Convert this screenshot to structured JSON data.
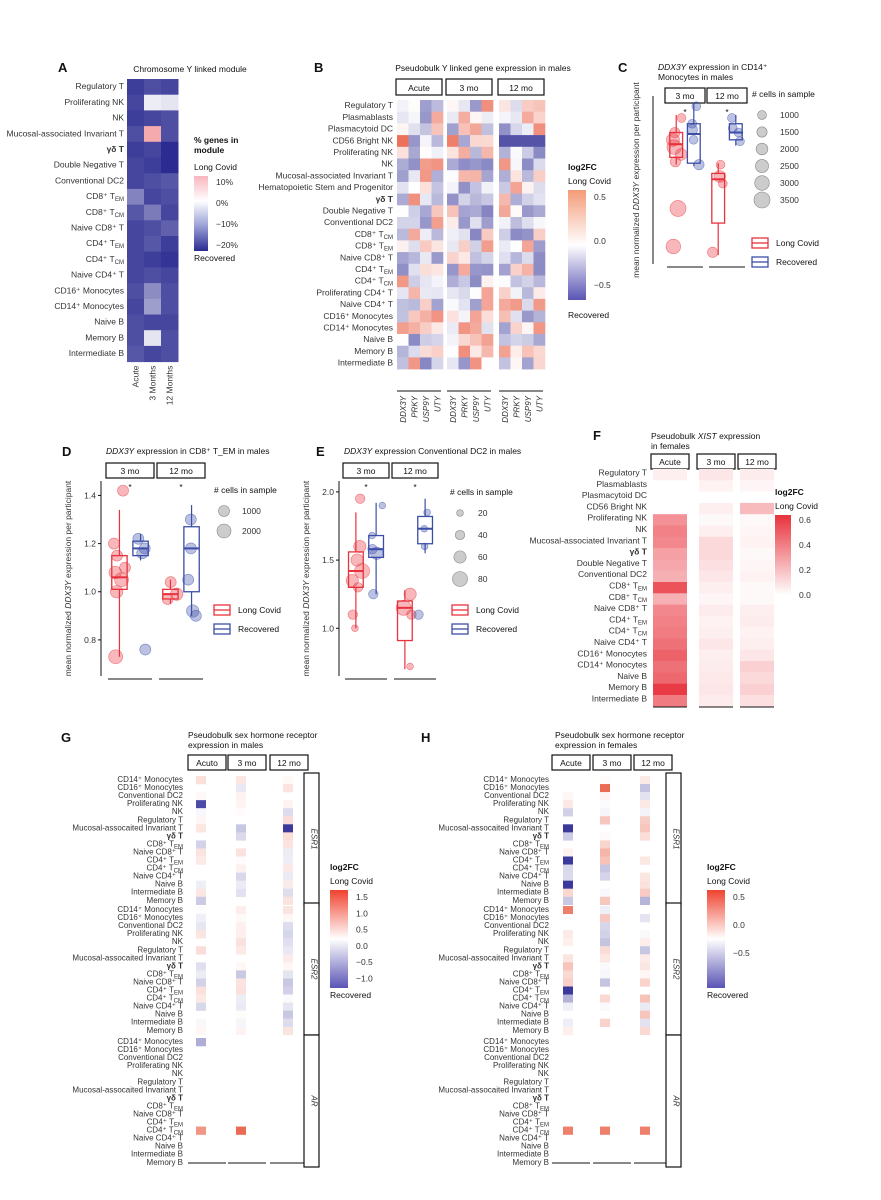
{
  "chart_data": [
    {
      "panel": "A",
      "type": "heatmap",
      "title": "Chromosome Y linked module",
      "rows": [
        "Regulatory T",
        "Proliferating NK",
        "NK",
        "Mucosal-associated Invariant T",
        "γδ T",
        "Double Negative T",
        "Conventional DC2",
        "CD8⁺ T_EM",
        "CD8⁺ T_CM",
        "Naive CD8⁺ T",
        "CD4⁺ T_EM",
        "CD4⁺ T_CM",
        "Naive CD4⁺ T",
        "CD16⁺ Monocytes",
        "CD14⁺ Monocytes",
        "Naive B",
        "Memory B",
        "Intermediate B"
      ],
      "columns": [
        "Acute",
        "3 Months",
        "12 Months"
      ],
      "values": [
        [
          -22,
          -20,
          -21
        ],
        [
          -21,
          -2,
          -3
        ],
        [
          -22,
          -21,
          -20
        ],
        [
          -20,
          5,
          -20
        ],
        [
          -22,
          -21,
          -24
        ],
        [
          -21,
          -22,
          -26
        ],
        [
          -21,
          -20,
          -19
        ],
        [
          -14,
          -21,
          -20
        ],
        [
          -19,
          -15,
          -21
        ],
        [
          -21,
          -20,
          -18
        ],
        [
          -21,
          -19,
          -22
        ],
        [
          -21,
          -22,
          -23
        ],
        [
          -21,
          -20,
          -21
        ],
        [
          -20,
          -13,
          -20
        ],
        [
          -21,
          -11,
          -20
        ],
        [
          -20,
          -21,
          -21
        ],
        [
          -20,
          -3,
          -20
        ],
        [
          -19,
          -21,
          -20
        ]
      ],
      "legend": {
        "title": "% genes in module",
        "top": "Long Covid",
        "bottom": "Recovered",
        "ticks": [
          "10%",
          "0%",
          "−10%",
          "−20%"
        ]
      }
    },
    {
      "panel": "B",
      "type": "heatmap",
      "title": "Pseudobulk Y linked gene expression in males",
      "rows": [
        "Regulatory T",
        "Plasmablasts",
        "Plasmacytoid DC",
        "CD56 Bright NK",
        "Proliferating NK",
        "NK",
        "Mucosal-associated Invariant T",
        "Hematopoietic Stem and Progenitor",
        "γδ T",
        "Double Negative T",
        "Conventional DC2",
        "CD8⁺ T_CM",
        "CD8⁺ T_EM",
        "Naive CD8⁺ T",
        "CD4⁺ T_EM",
        "CD4⁺ T_CM",
        "Proliferating CD4⁺ T",
        "Naive CD4⁺ T",
        "CD16⁺ Monocytes",
        "CD14⁺ Monocytes",
        "Naive B",
        "Memory B",
        "Intermediate B"
      ],
      "facets": [
        "Acute",
        "3 mo",
        "12 mo"
      ],
      "genes": [
        "DDX3Y",
        "PRKY",
        "USP9Y",
        "UTY"
      ],
      "legend": {
        "title": "log2FC",
        "top": "Long Covid",
        "bottom": "Recovered",
        "ticks": [
          "0.5",
          "0.0",
          "−0.5"
        ]
      }
    },
    {
      "panel": "C",
      "type": "box",
      "title": "DDX3Y expression in CD14⁺ Monocytes in males",
      "ylabel": "mean normalized DDX3Y expression per participant",
      "facets": [
        "3 mo",
        "12 mo"
      ],
      "ylim": [
        0.7,
        1.85
      ],
      "yticks": [],
      "groups": [
        {
          "facet": "3 mo",
          "name": "Long Covid",
          "q1": 1.43,
          "median": 1.52,
          "q3": 1.6,
          "lo": 1.38,
          "hi": 1.72,
          "points": [
            [
              1.5,
              3000
            ],
            [
              1.55,
              2500
            ],
            [
              1.45,
              2000
            ],
            [
              1.6,
              1500
            ],
            [
              1.08,
              3500
            ],
            [
              0.82,
              3000
            ],
            [
              1.7,
              1000
            ],
            [
              1.4,
              1500
            ]
          ]
        },
        {
          "facet": "3 mo",
          "name": "Recovered",
          "q1": 1.39,
          "median": 1.59,
          "q3": 1.66,
          "lo": 1.37,
          "hi": 1.8,
          "points": [
            [
              1.62,
              1500
            ],
            [
              1.55,
              1000
            ],
            [
              1.38,
              1500
            ],
            [
              1.78,
              1000
            ],
            [
              1.66,
              1000
            ]
          ]
        },
        {
          "facet": "12 mo",
          "name": "Long Covid",
          "q1": 0.98,
          "median": 1.28,
          "q3": 1.32,
          "lo": 0.76,
          "hi": 1.39,
          "points": [
            [
              1.3,
              2000
            ],
            [
              1.38,
              1000
            ],
            [
              0.78,
              1500
            ],
            [
              1.25,
              1000
            ]
          ]
        },
        {
          "facet": "12 mo",
          "name": "Recovered",
          "q1": 1.55,
          "median": 1.6,
          "q3": 1.66,
          "lo": 1.51,
          "hi": 1.72,
          "points": [
            [
              1.6,
              1000
            ],
            [
              1.54,
              1000
            ],
            [
              1.7,
              1000
            ],
            [
              1.63,
              1000
            ]
          ]
        }
      ],
      "sig": [
        "*",
        "*"
      ],
      "size_legend": {
        "title": "# cells in sample",
        "values": [
          1000,
          1500,
          2000,
          2500,
          3000,
          3500
        ]
      },
      "legend": [
        "Long Covid",
        "Recovered"
      ]
    },
    {
      "panel": "D",
      "type": "box",
      "title": "DDX3Y expression in CD8⁺ T_EM in males",
      "ylabel": "mean normalized DDX3Y expression per participant",
      "facets": [
        "3 mo",
        "12 mo"
      ],
      "ylim": [
        0.65,
        1.46
      ],
      "yticks": [
        "0.8",
        "1.0",
        "1.2",
        "1.4"
      ],
      "groups": [
        {
          "facet": "3 mo",
          "name": "Long Covid",
          "q1": 1.01,
          "median": 1.06,
          "q3": 1.15,
          "lo": 0.73,
          "hi": 1.34,
          "points": [
            [
              1.05,
              2000
            ],
            [
              1.1,
              1000
            ],
            [
              1.0,
              1500
            ],
            [
              1.2,
              1000
            ],
            [
              0.73,
              2000
            ],
            [
              1.42,
              1000
            ],
            [
              1.08,
              1500
            ],
            [
              1.15,
              1000
            ]
          ]
        },
        {
          "facet": "3 mo",
          "name": "Recovered",
          "q1": 1.15,
          "median": 1.18,
          "q3": 1.21,
          "lo": 1.13,
          "hi": 1.24,
          "points": [
            [
              1.18,
              1000
            ],
            [
              1.22,
              1000
            ],
            [
              1.16,
              1000
            ],
            [
              0.76,
              1000
            ]
          ]
        },
        {
          "facet": "12 mo",
          "name": "Long Covid",
          "q1": 0.97,
          "median": 0.99,
          "q3": 1.01,
          "lo": 0.95,
          "hi": 1.05,
          "points": [
            [
              0.99,
              1500
            ],
            [
              1.04,
              1000
            ],
            [
              0.97,
              1000
            ]
          ]
        },
        {
          "facet": "12 mo",
          "name": "Recovered",
          "q1": 1.0,
          "median": 1.18,
          "q3": 1.27,
          "lo": 0.9,
          "hi": 1.36,
          "points": [
            [
              1.18,
              1000
            ],
            [
              1.3,
              1000
            ],
            [
              0.92,
              1500
            ],
            [
              1.05,
              1000
            ],
            [
              0.9,
              1000
            ]
          ]
        }
      ],
      "sig": [
        "*",
        "*"
      ],
      "size_legend": {
        "title": "# cells in sample",
        "values": [
          1000,
          2000
        ]
      },
      "legend": [
        "Long Covid",
        "Recovered"
      ]
    },
    {
      "panel": "E",
      "type": "box",
      "title": "DDX3Y expression Conventional DC2 in males",
      "ylabel": "mean normalized DDX3Y expression per participant",
      "facets": [
        "3 mo",
        "12 mo"
      ],
      "ylim": [
        0.65,
        2.08
      ],
      "yticks": [
        "1.0",
        "1.5",
        "2.0"
      ],
      "groups": [
        {
          "facet": "3 mo",
          "name": "Long Covid",
          "q1": 1.3,
          "median": 1.42,
          "q3": 1.56,
          "lo": 1.0,
          "hi": 1.85,
          "points": [
            [
              1.42,
              80
            ],
            [
              1.5,
              60
            ],
            [
              1.3,
              40
            ],
            [
              1.95,
              40
            ],
            [
              1.6,
              60
            ],
            [
              1.1,
              40
            ],
            [
              1.0,
              20
            ],
            [
              1.35,
              60
            ]
          ]
        },
        {
          "facet": "3 mo",
          "name": "Recovered",
          "q1": 1.52,
          "median": 1.58,
          "q3": 1.68,
          "lo": 1.25,
          "hi": 1.92,
          "points": [
            [
              1.58,
              40
            ],
            [
              1.68,
              20
            ],
            [
              1.25,
              40
            ],
            [
              1.9,
              20
            ],
            [
              1.55,
              60
            ]
          ]
        },
        {
          "facet": "12 mo",
          "name": "Long Covid",
          "q1": 0.91,
          "median": 1.15,
          "q3": 1.2,
          "lo": 0.7,
          "hi": 1.28,
          "points": [
            [
              1.15,
              80
            ],
            [
              1.25,
              60
            ],
            [
              0.72,
              20
            ],
            [
              1.1,
              40
            ]
          ]
        },
        {
          "facet": "12 mo",
          "name": "Recovered",
          "q1": 1.62,
          "median": 1.73,
          "q3": 1.82,
          "lo": 1.55,
          "hi": 1.95,
          "points": [
            [
              1.73,
              20
            ],
            [
              1.85,
              20
            ],
            [
              1.6,
              20
            ],
            [
              1.1,
              40
            ]
          ]
        }
      ],
      "sig": [
        "*",
        "*"
      ],
      "size_legend": {
        "title": "# cells in sample",
        "values": [
          20,
          40,
          60,
          80
        ]
      },
      "legend": [
        "Long Covid",
        "Recovered"
      ]
    },
    {
      "panel": "F",
      "type": "heatmap",
      "title": "Pseudobulk XIST expression in females",
      "rows": [
        "Regulatory T",
        "Plasmablasts",
        "Plasmacytoid DC",
        "CD56 Bright NK",
        "Proliferating NK",
        "NK",
        "Mucosal-associated Invariant T",
        "γδ T",
        "Double Negative T",
        "Conventional DC2",
        "CD8⁺ T_EM",
        "CD8⁺ T_CM",
        "Naive CD8⁺ T",
        "CD4⁺ T_EM",
        "CD4⁺ T_CM",
        "Naive CD4⁺ T",
        "CD16⁺ Monocytes",
        "CD14⁺ Monocytes",
        "Naive B",
        "Memory B",
        "Intermediate B"
      ],
      "columns": [
        "Acute",
        "3 mo",
        "12 mo"
      ],
      "values": [
        [
          0.05,
          0.08,
          0.06
        ],
        [
          0.0,
          0.04,
          0.03
        ],
        [
          0.0,
          0.0,
          0.0
        ],
        [
          0.0,
          0.05,
          0.22
        ],
        [
          0.35,
          0.02,
          0.02
        ],
        [
          0.4,
          0.05,
          0.03
        ],
        [
          0.38,
          0.12,
          0.04
        ],
        [
          0.3,
          0.12,
          0.02
        ],
        [
          0.28,
          0.1,
          0.03
        ],
        [
          0.25,
          0.08,
          0.04
        ],
        [
          0.55,
          0.05,
          0.02
        ],
        [
          0.25,
          0.03,
          0.02
        ],
        [
          0.38,
          0.06,
          0.05
        ],
        [
          0.4,
          0.04,
          0.06
        ],
        [
          0.42,
          0.05,
          0.04
        ],
        [
          0.45,
          0.08,
          0.05
        ],
        [
          0.5,
          0.05,
          0.08
        ],
        [
          0.45,
          0.06,
          0.15
        ],
        [
          0.48,
          0.07,
          0.12
        ],
        [
          0.62,
          0.08,
          0.15
        ],
        [
          0.42,
          0.06,
          0.1
        ]
      ],
      "legend": {
        "title": "log2FC",
        "top": "Long Covid",
        "ticks": [
          "0.6",
          "0.4",
          "0.2",
          "0.0"
        ]
      }
    },
    {
      "panel": "G",
      "type": "heatmap",
      "title": "Pseudobulk sex hormone receptor expression in males",
      "rows": [
        "CD14⁺ Monocytes",
        "CD16⁺ Monocytes",
        "Conventional DC2",
        "Proliferating NK",
        "NK",
        "Regulatory T",
        "Mucosal-assocaited Invariant T",
        "γδ T",
        "CD8⁺ T_EM",
        "Naive CD8⁺ T",
        "CD4⁺ T_EM",
        "CD4⁺ T_CM",
        "Naive CD4⁺ T",
        "Naive B",
        "Intermediate B",
        "Memory B"
      ],
      "facets": [
        "Acuto",
        "3 mo",
        "12 mo"
      ],
      "strips": [
        "ESR1",
        "ESR2",
        "AR"
      ],
      "legend": {
        "title": "log2FC",
        "top": "Long Covid",
        "bottom": "Recovered",
        "ticks": [
          "1.5",
          "1.0",
          "0.5",
          "0.0",
          "−0.5",
          "−1.0"
        ]
      }
    },
    {
      "panel": "H",
      "type": "heatmap",
      "title": "Pseudobulk sex hormone receptor expression in females",
      "rows": [
        "CD14⁺ Monocytes",
        "CD16⁺ Monocytes",
        "Conventional DC2",
        "Proliferating NK",
        "NK",
        "Regulatory T",
        "Mucosal-assocaited Invariant T",
        "γδ T",
        "CD8⁺ T_EM",
        "Naive CD8⁺ T",
        "CD4⁺ T_EM",
        "CD4⁺ T_CM",
        "Naive CD4⁺ T",
        "Naive B",
        "Intermediate B",
        "Memory B"
      ],
      "facets": [
        "Acute",
        "3 mo",
        "12 mo"
      ],
      "strips": [
        "ESR1",
        "ESR2",
        "AR"
      ],
      "legend": {
        "title": "log2FC",
        "top": "Long Covid",
        "bottom": "Recovered",
        "ticks": [
          "0.5",
          "0.0",
          "−0.5"
        ]
      }
    }
  ],
  "colors": {
    "long_covid": "#e8323c",
    "recovered": "#3b4ea8",
    "hi": "#e8553a",
    "mid": "#ffffff",
    "lo": "#3b3a9c"
  }
}
